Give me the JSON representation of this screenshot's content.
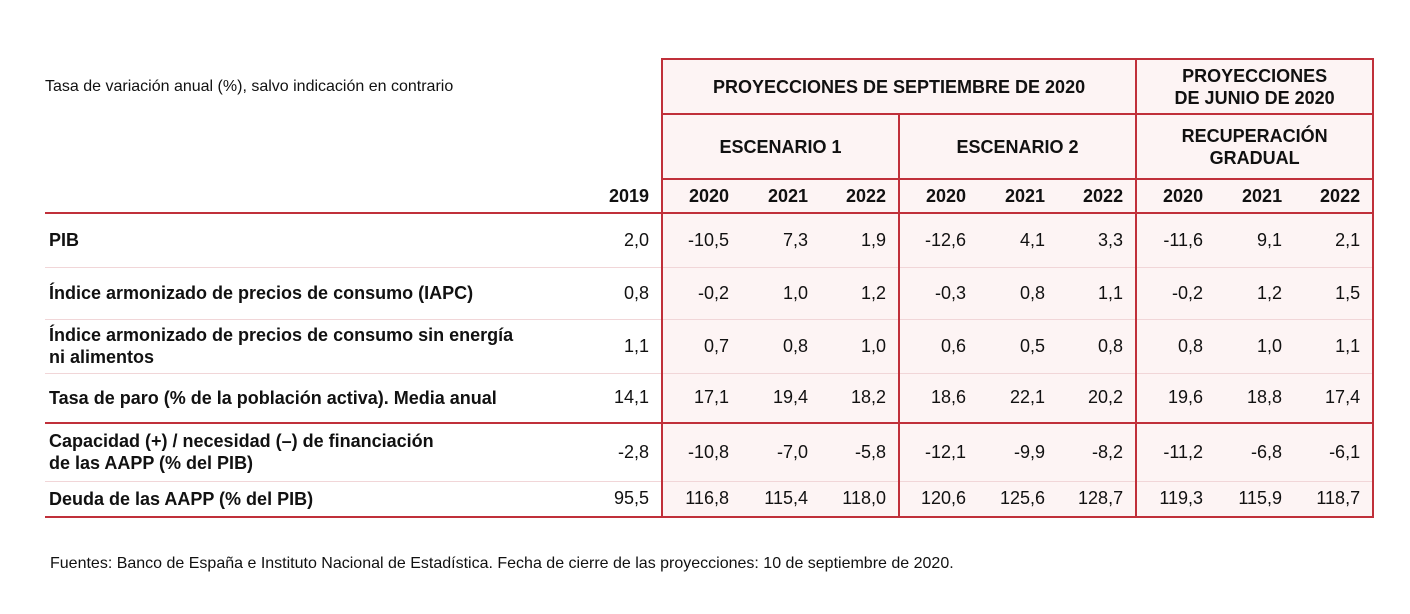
{
  "header": {
    "note": "Tasa de variación anual (%), salvo indicación en contrario"
  },
  "table": {
    "groups": [
      {
        "label": "PROYECCIONES DE SEPTIEMBRE DE 2020",
        "subgroups": [
          "ESCENARIO 1",
          "ESCENARIO 2"
        ]
      },
      {
        "label": "PROYECCIONES\nDE JUNIO DE 2020",
        "subgroups": [
          "RECUPERACIÓN\nGRADUAL"
        ]
      }
    ],
    "columns": [
      "2019",
      "2020",
      "2021",
      "2022",
      "2020",
      "2021",
      "2022",
      "2020",
      "2021",
      "2022"
    ],
    "rows": [
      {
        "label": "PIB",
        "values": [
          "2,0",
          "-10,5",
          "7,3",
          "1,9",
          "-12,6",
          "4,1",
          "3,3",
          "-11,6",
          "9,1",
          "2,1"
        ]
      },
      {
        "label": "Índice armonizado de precios de consumo (IAPC)",
        "values": [
          "0,8",
          "-0,2",
          "1,0",
          "1,2",
          "-0,3",
          "0,8",
          "1,1",
          "-0,2",
          "1,2",
          "1,5"
        ]
      },
      {
        "label": "Índice armonizado de precios de consumo sin energía\nni alimentos",
        "values": [
          "1,1",
          "0,7",
          "0,8",
          "1,0",
          "0,6",
          "0,5",
          "0,8",
          "0,8",
          "1,0",
          "1,1"
        ]
      },
      {
        "label": "Tasa de paro (% de la población activa). Media anual",
        "values": [
          "14,1",
          "17,1",
          "19,4",
          "18,2",
          "18,6",
          "22,1",
          "20,2",
          "19,6",
          "18,8",
          "17,4"
        ]
      },
      {
        "label": "Capacidad (+) / necesidad (–) de financiación\nde las AAPP (% del PIB)",
        "values": [
          "-2,8",
          "-10,8",
          "-7,0",
          "-5,8",
          "-12,1",
          "-9,9",
          "-8,2",
          "-11,2",
          "-6,8",
          "-6,1"
        ]
      },
      {
        "label": "Deuda de las AAPP (% del PIB)",
        "values": [
          "95,5",
          "116,8",
          "115,4",
          "118,0",
          "120,6",
          "125,6",
          "128,7",
          "119,3",
          "115,9",
          "118,7"
        ]
      }
    ]
  },
  "footer": "Fuentes: Banco de España e Instituto Nacional de Estadística. Fecha de cierre de las proyecciones: 10 de septiembre de 2020."
}
